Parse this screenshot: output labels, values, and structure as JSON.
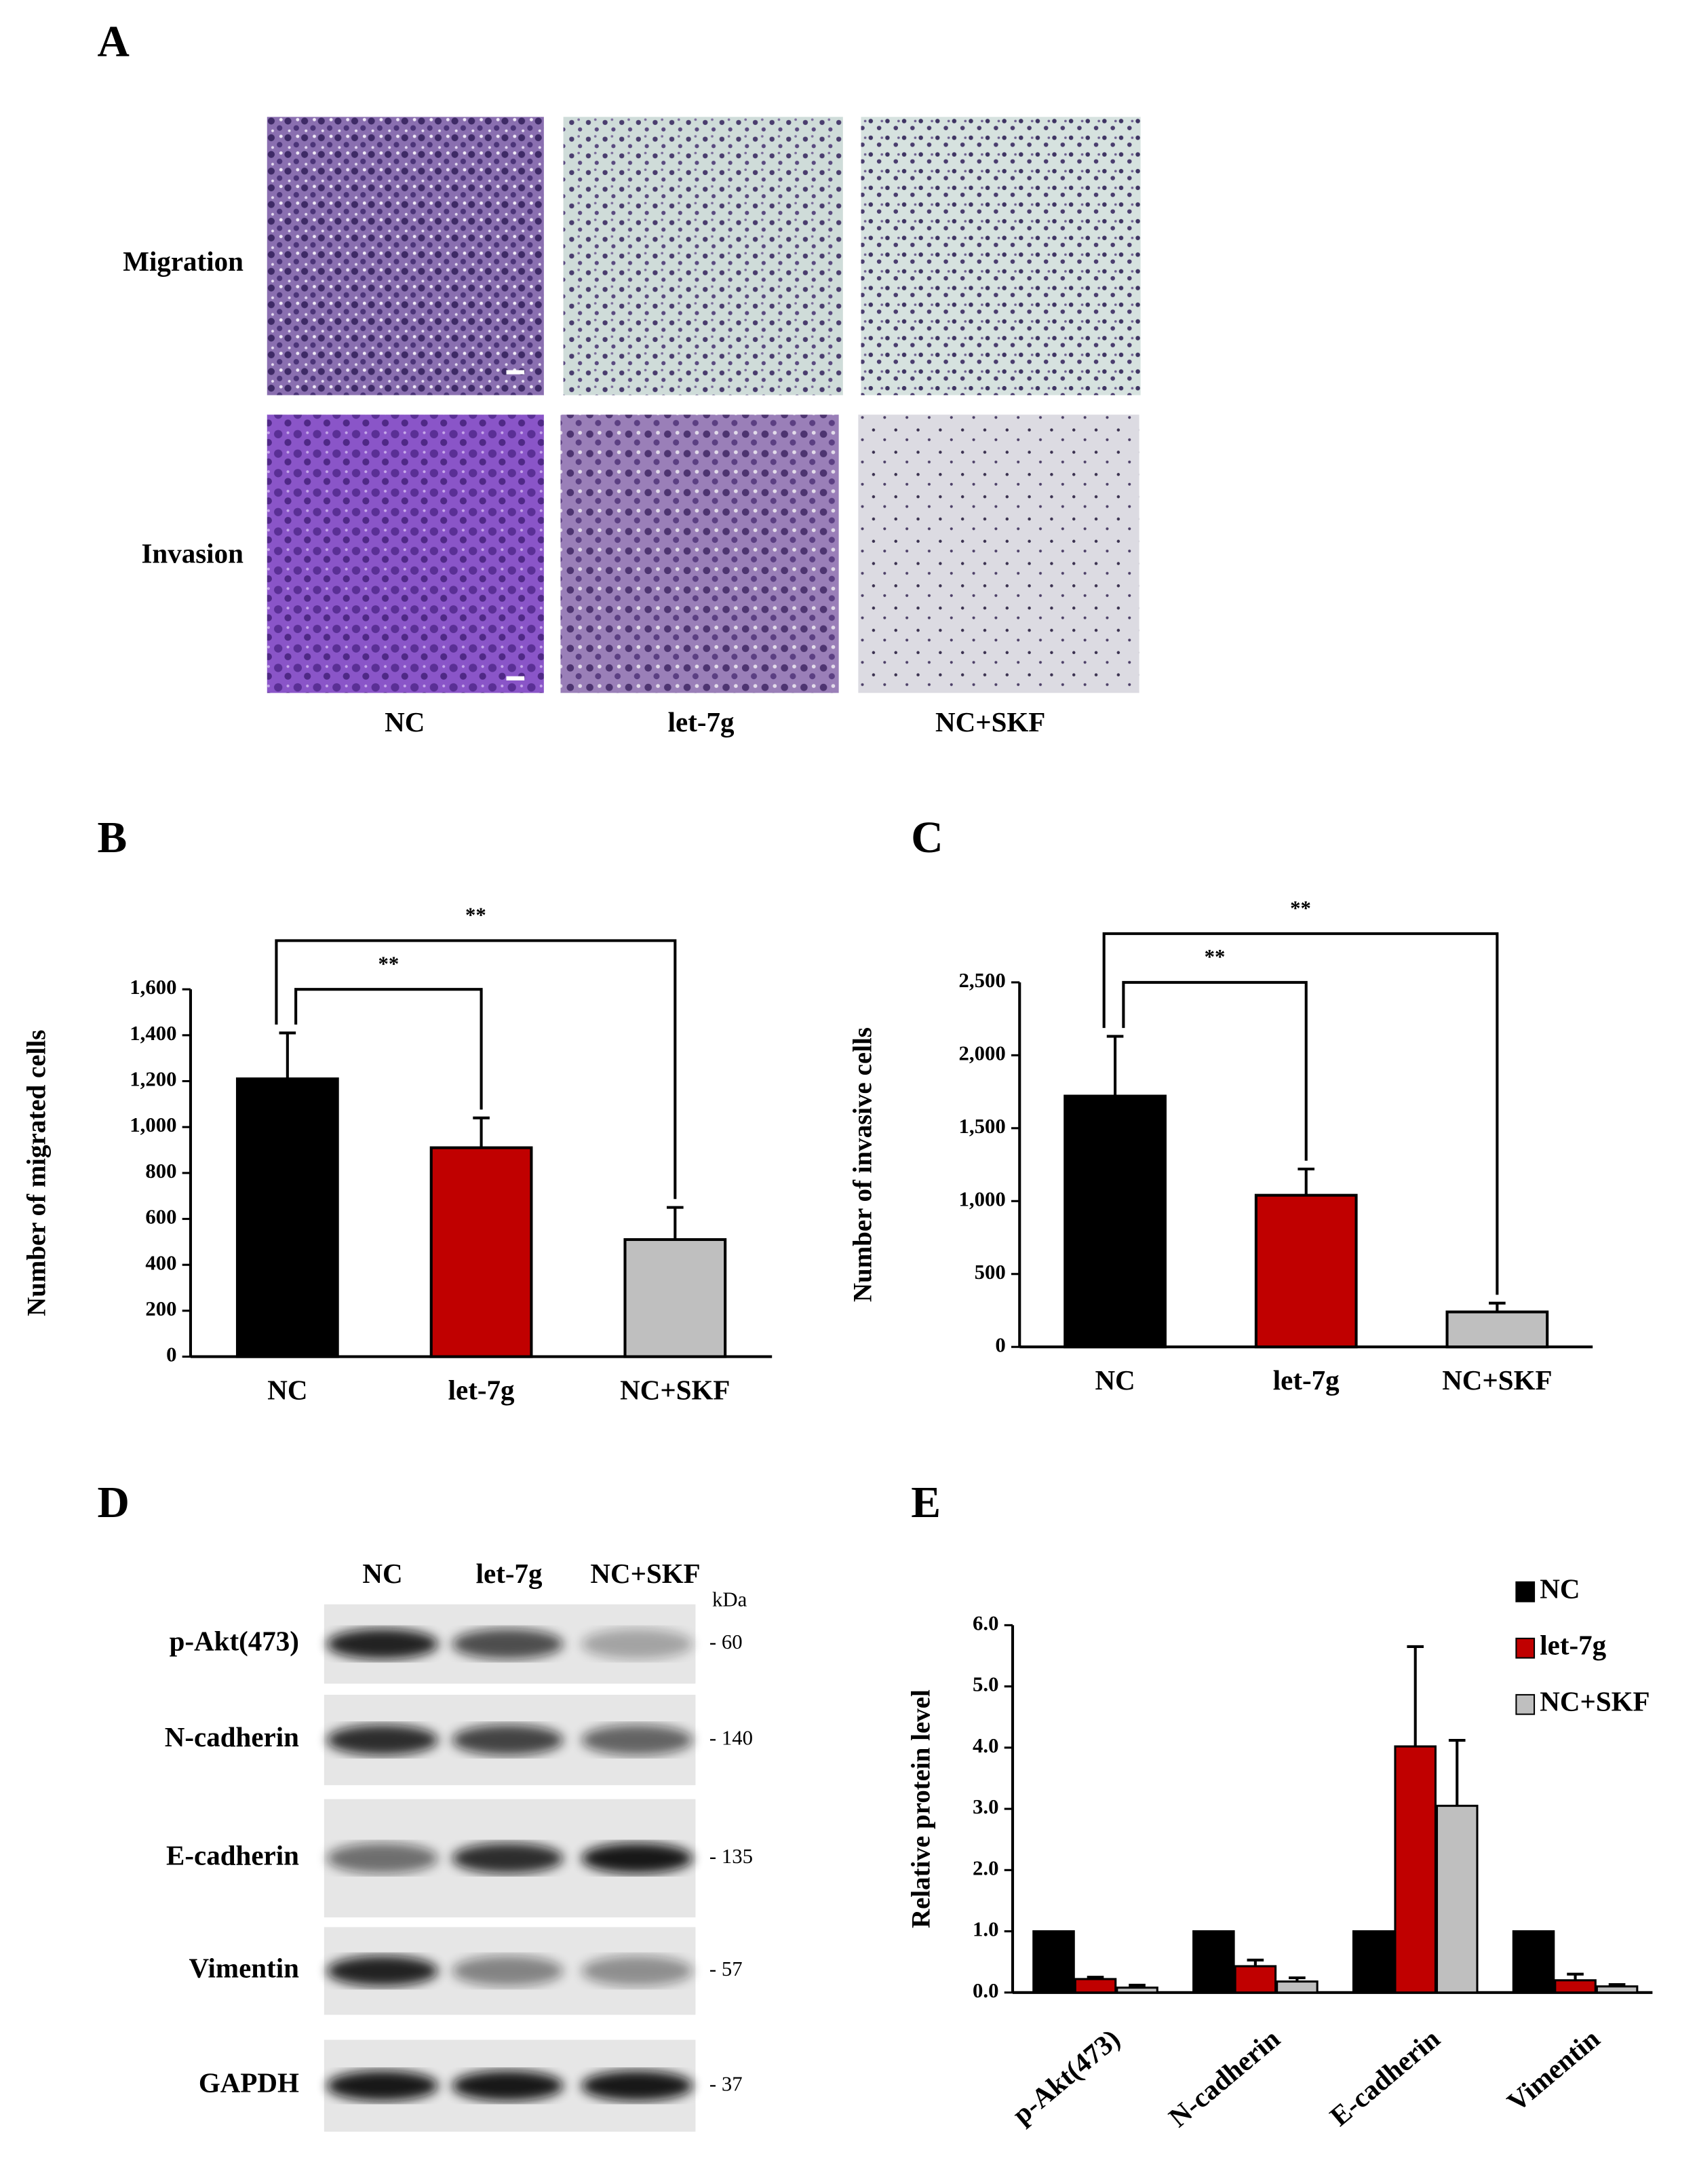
{
  "panel_a": {
    "label": "A",
    "rows": [
      "Migration",
      "Invasion"
    ],
    "columns": [
      "NC",
      "let-7g",
      "NC+SKF"
    ]
  },
  "panel_d": {
    "label": "D",
    "lanes": [
      "NC",
      "let-7g",
      "NC+SKF"
    ],
    "unit": "kDa",
    "rows": [
      {
        "protein": "p-Akt(473)",
        "size": "- 60"
      },
      {
        "protein": "N-cadherin",
        "size": "- 140"
      },
      {
        "protein": "E-cadherin",
        "size": "- 135"
      },
      {
        "protein": "Vimentin",
        "size": "- 57"
      },
      {
        "protein": "GAPDH",
        "size": "- 37"
      }
    ]
  },
  "chart_data": [
    {
      "type": "bar",
      "panel": "B",
      "y_label": "Number of  migrated cells",
      "categories": [
        "NC",
        "let-7g",
        "NC+SKF"
      ],
      "values": [
        1210,
        910,
        510
      ],
      "errors": [
        200,
        130,
        140
      ],
      "colors": [
        "#000000",
        "#c00000",
        "#bfbfbf"
      ],
      "ylim": [
        0,
        1600
      ],
      "yticks": [
        0,
        200,
        400,
        600,
        800,
        {
          "value": 1000,
          "label": "1,000"
        },
        {
          "value": 1200,
          "label": "1,200"
        },
        {
          "value": 1400,
          "label": "1,400"
        },
        {
          "value": 1600,
          "label": "1,600"
        }
      ],
      "annotations": [
        {
          "text": "**",
          "from": 0,
          "to": 1
        },
        {
          "text": "**",
          "from": 0,
          "to": 2
        }
      ]
    },
    {
      "type": "bar",
      "panel": "C",
      "y_label": "Number of  invasive cells",
      "categories": [
        "NC",
        "let-7g",
        "NC+SKF"
      ],
      "values": [
        1720,
        1040,
        240
      ],
      "errors": [
        410,
        180,
        60
      ],
      "colors": [
        "#000000",
        "#c00000",
        "#bfbfbf"
      ],
      "ylim": [
        0,
        2500
      ],
      "yticks": [
        0,
        500,
        {
          "value": 1000,
          "label": "1,000"
        },
        {
          "value": 1500,
          "label": "1,500"
        },
        {
          "value": 2000,
          "label": "2,000"
        },
        {
          "value": 2500,
          "label": "2,500"
        }
      ],
      "annotations": [
        {
          "text": "**",
          "from": 0,
          "to": 1
        },
        {
          "text": "**",
          "from": 0,
          "to": 2
        }
      ]
    },
    {
      "type": "grouped_bar",
      "panel": "E",
      "y_label": "Relative protein level",
      "categories": [
        "p-Akt(473)",
        "N-cadherin",
        "E-cadherin",
        "Vimentin"
      ],
      "series": [
        {
          "name": "NC",
          "color": "#000000",
          "values": [
            1,
            1,
            1,
            1
          ]
        },
        {
          "name": "let-7g",
          "color": "#c00000",
          "values": [
            0.22,
            0.43,
            4.02,
            0.2
          ],
          "errors": [
            0.03,
            0.1,
            1.63,
            0.1
          ]
        },
        {
          "name": "NC+SKF",
          "color": "#bfbfbf",
          "values": [
            0.08,
            0.18,
            3.05,
            0.1
          ],
          "errors": [
            0.04,
            0.06,
            1.07,
            0.03
          ]
        }
      ],
      "ylim": [
        0,
        6
      ],
      "yticks": [
        {
          "value": 0,
          "label": "0.0"
        },
        {
          "value": 1,
          "label": "1.0"
        },
        {
          "value": 2,
          "label": "2.0"
        },
        {
          "value": 3,
          "label": "3.0"
        },
        {
          "value": 4,
          "label": "4.0"
        },
        {
          "value": 5,
          "label": "5.0"
        },
        {
          "value": 6,
          "label": "6.0"
        }
      ],
      "legend": "top-right"
    }
  ]
}
